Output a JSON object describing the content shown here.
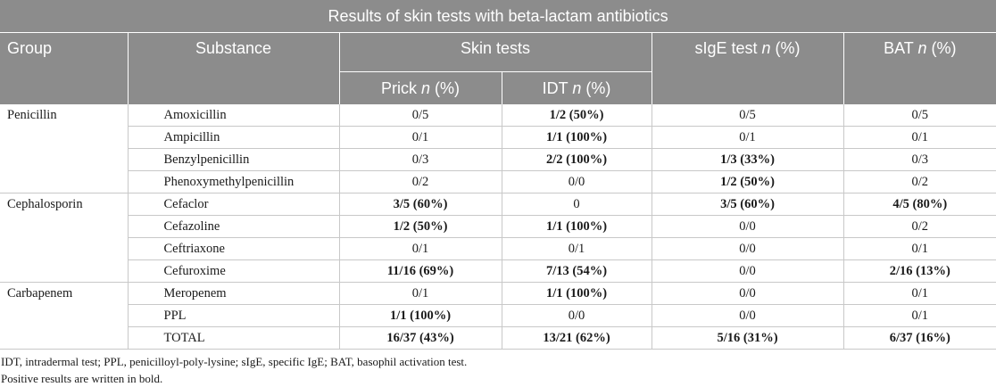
{
  "table": {
    "title": "Results of skin tests with beta-lactam antibiotics",
    "headers": {
      "group": "Group",
      "substance": "Substance",
      "skin_tests": "Skin tests",
      "prick_label": "Prick",
      "prick_unit": "n",
      "prick_pct": "(%)",
      "idt_label": "IDT",
      "idt_unit": "n",
      "idt_pct": "(%)",
      "sige_label": "sIgE test",
      "sige_unit": "n",
      "sige_pct": "(%)",
      "bat_label": "BAT",
      "bat_unit": "n",
      "bat_pct": "(%)"
    },
    "rows": [
      {
        "group": "Penicillin",
        "substance": "Amoxicillin",
        "prick": "0/5",
        "prick_bold": false,
        "idt": "1/2 (50%)",
        "idt_bold": true,
        "sige": "0/5",
        "sige_bold": false,
        "bat": "0/5",
        "bat_bold": false
      },
      {
        "group": "",
        "substance": "Ampicillin",
        "prick": "0/1",
        "prick_bold": false,
        "idt": "1/1 (100%)",
        "idt_bold": true,
        "sige": "0/1",
        "sige_bold": false,
        "bat": "0/1",
        "bat_bold": false
      },
      {
        "group": "",
        "substance": "Benzylpenicillin",
        "prick": "0/3",
        "prick_bold": false,
        "idt": "2/2 (100%)",
        "idt_bold": true,
        "sige": "1/3 (33%)",
        "sige_bold": true,
        "bat": "0/3",
        "bat_bold": false
      },
      {
        "group": "",
        "substance": "Phenoxymethylpenicillin",
        "prick": "0/2",
        "prick_bold": false,
        "idt": "0/0",
        "idt_bold": false,
        "sige": "1/2 (50%)",
        "sige_bold": true,
        "bat": "0/2",
        "bat_bold": false
      },
      {
        "group": "Cephalosporin",
        "substance": "Cefaclor",
        "prick": "3/5 (60%)",
        "prick_bold": true,
        "idt": "0",
        "idt_bold": false,
        "sige": "3/5 (60%)",
        "sige_bold": true,
        "bat": "4/5 (80%)",
        "bat_bold": true
      },
      {
        "group": "",
        "substance": "Cefazoline",
        "prick": "1/2 (50%)",
        "prick_bold": true,
        "idt": "1/1 (100%)",
        "idt_bold": true,
        "sige": "0/0",
        "sige_bold": false,
        "bat": "0/2",
        "bat_bold": false
      },
      {
        "group": "",
        "substance": "Ceftriaxone",
        "prick": "0/1",
        "prick_bold": false,
        "idt": "0/1",
        "idt_bold": false,
        "sige": "0/0",
        "sige_bold": false,
        "bat": "0/1",
        "bat_bold": false
      },
      {
        "group": "",
        "substance": "Cefuroxime",
        "prick": "11/16 (69%)",
        "prick_bold": true,
        "idt": "7/13 (54%)",
        "idt_bold": true,
        "sige": "0/0",
        "sige_bold": false,
        "bat": "2/16 (13%)",
        "bat_bold": true
      },
      {
        "group": "Carbapenem",
        "substance": "Meropenem",
        "prick": "0/1",
        "prick_bold": false,
        "idt": "1/1 (100%)",
        "idt_bold": true,
        "sige": "0/0",
        "sige_bold": false,
        "bat": "0/1",
        "bat_bold": false
      },
      {
        "group": "",
        "substance": "PPL",
        "prick": "1/1 (100%)",
        "prick_bold": true,
        "idt": "0/0",
        "idt_bold": false,
        "sige": "0/0",
        "sige_bold": false,
        "bat": "0/1",
        "bat_bold": false
      },
      {
        "group": "",
        "substance": "TOTAL",
        "prick": "16/37 (43%)",
        "prick_bold": true,
        "idt": "13/21 (62%)",
        "idt_bold": true,
        "sige": "5/16 (31%)",
        "sige_bold": true,
        "bat": "6/37 (16%)",
        "bat_bold": true
      }
    ]
  },
  "footnotes": {
    "abbreviations": "IDT, intradermal test; PPL, penicilloyl-poly-lysine; sIgE, specific IgE; BAT, basophil activation test.",
    "bold_note": "Positive results are written in bold."
  },
  "colors": {
    "header_bg": "#8c8c8c",
    "header_text": "#ffffff",
    "grid_line": "#c8c8c8"
  }
}
